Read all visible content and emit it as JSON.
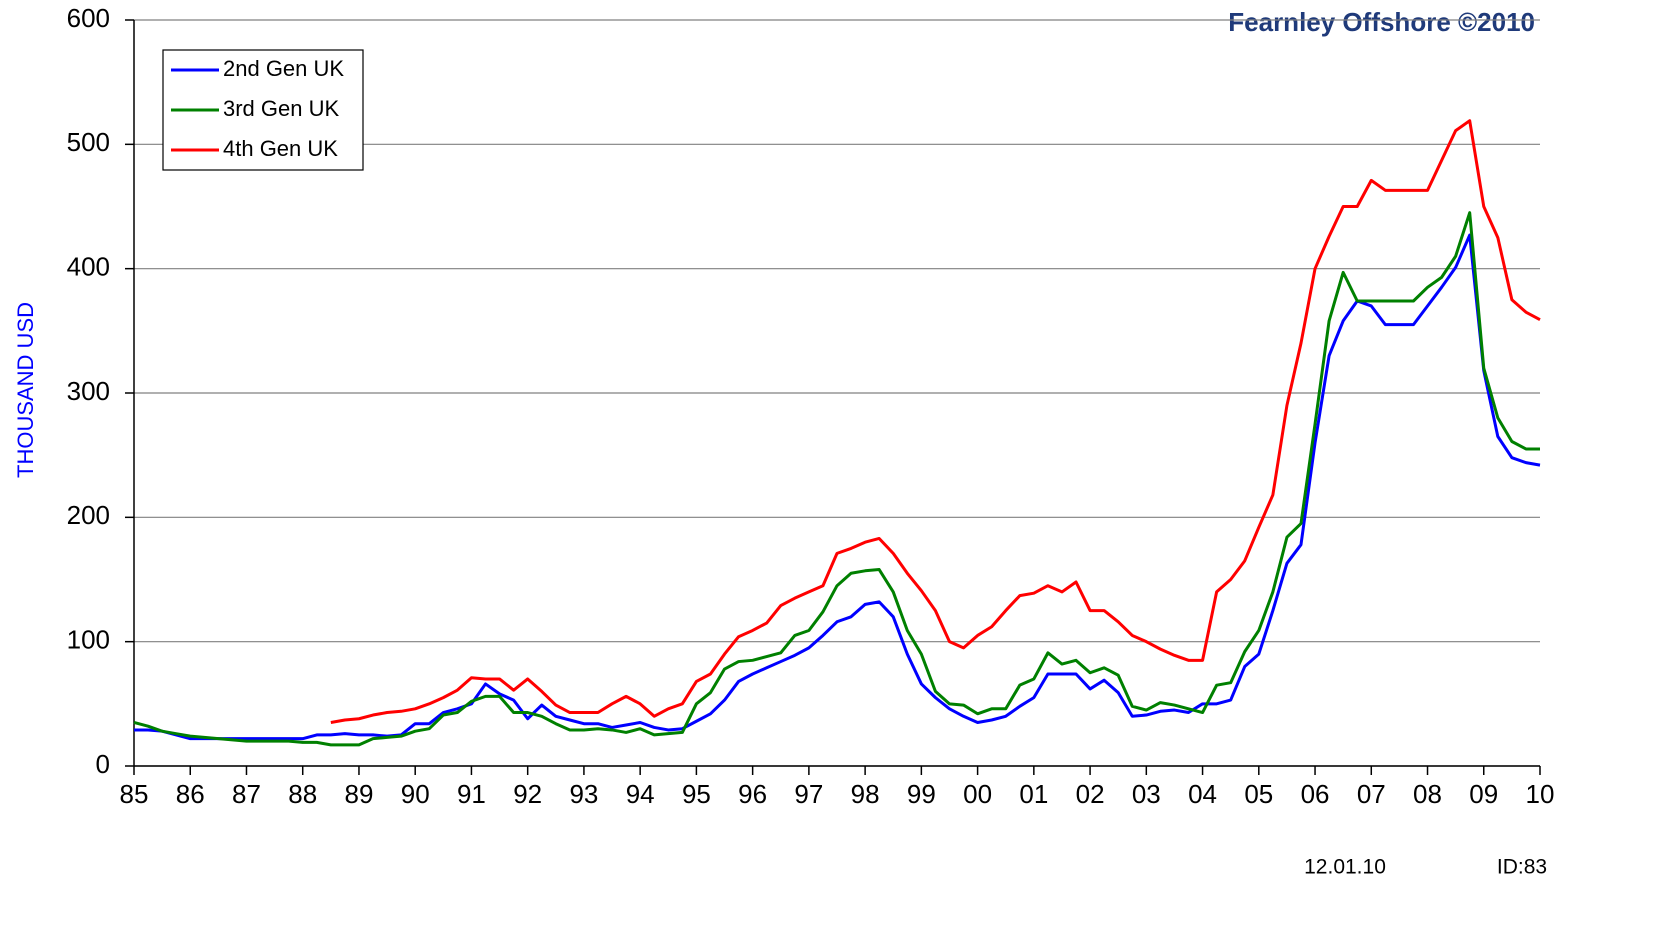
{
  "chart_data": {
    "type": "line",
    "ylabel": "THOUSAND USD",
    "logo_text": "Fearnley Offshore ©2010",
    "date_label": "12.01.10",
    "id_label": "ID:83",
    "legend": "upper left",
    "grid": true,
    "ylim": [
      0,
      600
    ],
    "yticks": [
      0,
      100,
      200,
      300,
      400,
      500,
      600
    ],
    "xlim": [
      1985,
      2010
    ],
    "xticks": [
      {
        "value": 1985,
        "label": "85"
      },
      {
        "value": 1986,
        "label": "86"
      },
      {
        "value": 1987,
        "label": "87"
      },
      {
        "value": 1988,
        "label": "88"
      },
      {
        "value": 1989,
        "label": "89"
      },
      {
        "value": 1990,
        "label": "90"
      },
      {
        "value": 1991,
        "label": "91"
      },
      {
        "value": 1992,
        "label": "92"
      },
      {
        "value": 1993,
        "label": "93"
      },
      {
        "value": 1994,
        "label": "94"
      },
      {
        "value": 1995,
        "label": "95"
      },
      {
        "value": 1996,
        "label": "96"
      },
      {
        "value": 1997,
        "label": "97"
      },
      {
        "value": 1998,
        "label": "98"
      },
      {
        "value": 1999,
        "label": "99"
      },
      {
        "value": 2000,
        "label": "00"
      },
      {
        "value": 2001,
        "label": "01"
      },
      {
        "value": 2002,
        "label": "02"
      },
      {
        "value": 2003,
        "label": "03"
      },
      {
        "value": 2004,
        "label": "04"
      },
      {
        "value": 2005,
        "label": "05"
      },
      {
        "value": 2006,
        "label": "06"
      },
      {
        "value": 2007,
        "label": "07"
      },
      {
        "value": 2008,
        "label": "08"
      },
      {
        "value": 2009,
        "label": "09"
      },
      {
        "value": 2010,
        "label": "10"
      }
    ],
    "x": [
      1985,
      1985.25,
      1985.5,
      1985.75,
      1986,
      1986.25,
      1986.5,
      1986.75,
      1987,
      1987.25,
      1987.5,
      1987.75,
      1988,
      1988.25,
      1988.5,
      1988.75,
      1989,
      1989.25,
      1989.5,
      1989.75,
      1990,
      1990.25,
      1990.5,
      1990.75,
      1991,
      1991.25,
      1991.5,
      1991.75,
      1992,
      1992.25,
      1992.5,
      1992.75,
      1993,
      1993.25,
      1993.5,
      1993.75,
      1994,
      1994.25,
      1994.5,
      1994.75,
      1995,
      1995.25,
      1995.5,
      1995.75,
      1996,
      1996.25,
      1996.5,
      1996.75,
      1997,
      1997.25,
      1997.5,
      1997.75,
      1998,
      1998.25,
      1998.5,
      1998.75,
      1999,
      1999.25,
      1999.5,
      1999.75,
      2000,
      2000.25,
      2000.5,
      2000.75,
      2001,
      2001.25,
      2001.5,
      2001.75,
      2002,
      2002.25,
      2002.5,
      2002.75,
      2003,
      2003.25,
      2003.5,
      2003.75,
      2004,
      2004.25,
      2004.5,
      2004.75,
      2005,
      2005.25,
      2005.5,
      2005.75,
      2006,
      2006.25,
      2006.5,
      2006.75,
      2007,
      2007.25,
      2007.5,
      2007.75,
      2008,
      2008.25,
      2008.5,
      2008.75,
      2009,
      2009.25,
      2009.5,
      2009.75,
      2010
    ],
    "series": [
      {
        "name": "2nd Gen UK",
        "color": "#0000ff",
        "values": [
          29,
          29,
          28,
          25,
          22,
          22,
          22,
          22,
          22,
          22,
          22,
          22,
          22,
          25,
          25,
          26,
          25,
          25,
          24,
          25,
          34,
          34,
          43,
          46,
          50,
          66,
          58,
          53,
          38,
          49,
          40,
          37,
          34,
          34,
          31,
          33,
          35,
          31,
          29,
          30,
          36,
          42,
          53,
          68,
          74,
          79,
          84,
          89,
          95,
          105,
          116,
          120,
          130,
          132,
          120,
          90,
          66,
          55,
          46,
          40,
          35,
          37,
          40,
          48,
          55,
          74,
          74,
          74,
          62,
          69,
          59,
          40,
          41,
          44,
          45,
          43,
          50,
          50,
          53,
          80,
          90,
          125,
          163,
          178,
          260,
          330,
          358,
          374,
          370,
          355,
          355,
          355,
          370,
          385,
          401,
          427,
          318,
          265,
          248,
          244,
          242
        ]
      },
      {
        "name": "3rd Gen UK",
        "color": "#008000",
        "values": [
          35,
          32,
          28,
          26,
          24,
          23,
          22,
          21,
          20,
          20,
          20,
          20,
          19,
          19,
          17,
          17,
          17,
          22,
          23,
          24,
          28,
          30,
          41,
          43,
          52,
          56,
          56,
          43,
          43,
          40,
          34,
          29,
          29,
          30,
          29,
          27,
          30,
          25,
          26,
          27,
          50,
          59,
          78,
          84,
          85,
          88,
          91,
          105,
          109,
          124,
          145,
          155,
          157,
          158,
          140,
          109,
          90,
          60,
          50,
          49,
          42,
          46,
          46,
          65,
          70,
          91,
          82,
          85,
          75,
          79,
          73,
          48,
          45,
          51,
          49,
          46,
          43,
          65,
          67,
          92,
          109,
          140,
          184,
          195,
          275,
          358,
          397,
          374,
          374,
          374,
          374,
          374,
          385,
          393,
          410,
          445,
          320,
          280,
          261,
          255,
          255
        ]
      },
      {
        "name": "4th Gen UK",
        "color": "#ff0000",
        "values": [
          null,
          null,
          null,
          null,
          null,
          null,
          null,
          null,
          null,
          null,
          null,
          null,
          null,
          null,
          35,
          37,
          38,
          41,
          43,
          44,
          46,
          50,
          55,
          61,
          71,
          70,
          70,
          61,
          70,
          60,
          49,
          43,
          43,
          43,
          50,
          56,
          50,
          40,
          46,
          50,
          68,
          74,
          90,
          104,
          109,
          115,
          129,
          135,
          140,
          145,
          171,
          175,
          180,
          183,
          171,
          155,
          141,
          125,
          100,
          95,
          105,
          112,
          125,
          137,
          139,
          145,
          140,
          148,
          125,
          125,
          116,
          105,
          100,
          94,
          89,
          85,
          85,
          140,
          150,
          165,
          192,
          218,
          290,
          340,
          400,
          426,
          450,
          450,
          471,
          463,
          463,
          463,
          463,
          487,
          511,
          519,
          450,
          425,
          375,
          365,
          359
        ]
      }
    ]
  }
}
